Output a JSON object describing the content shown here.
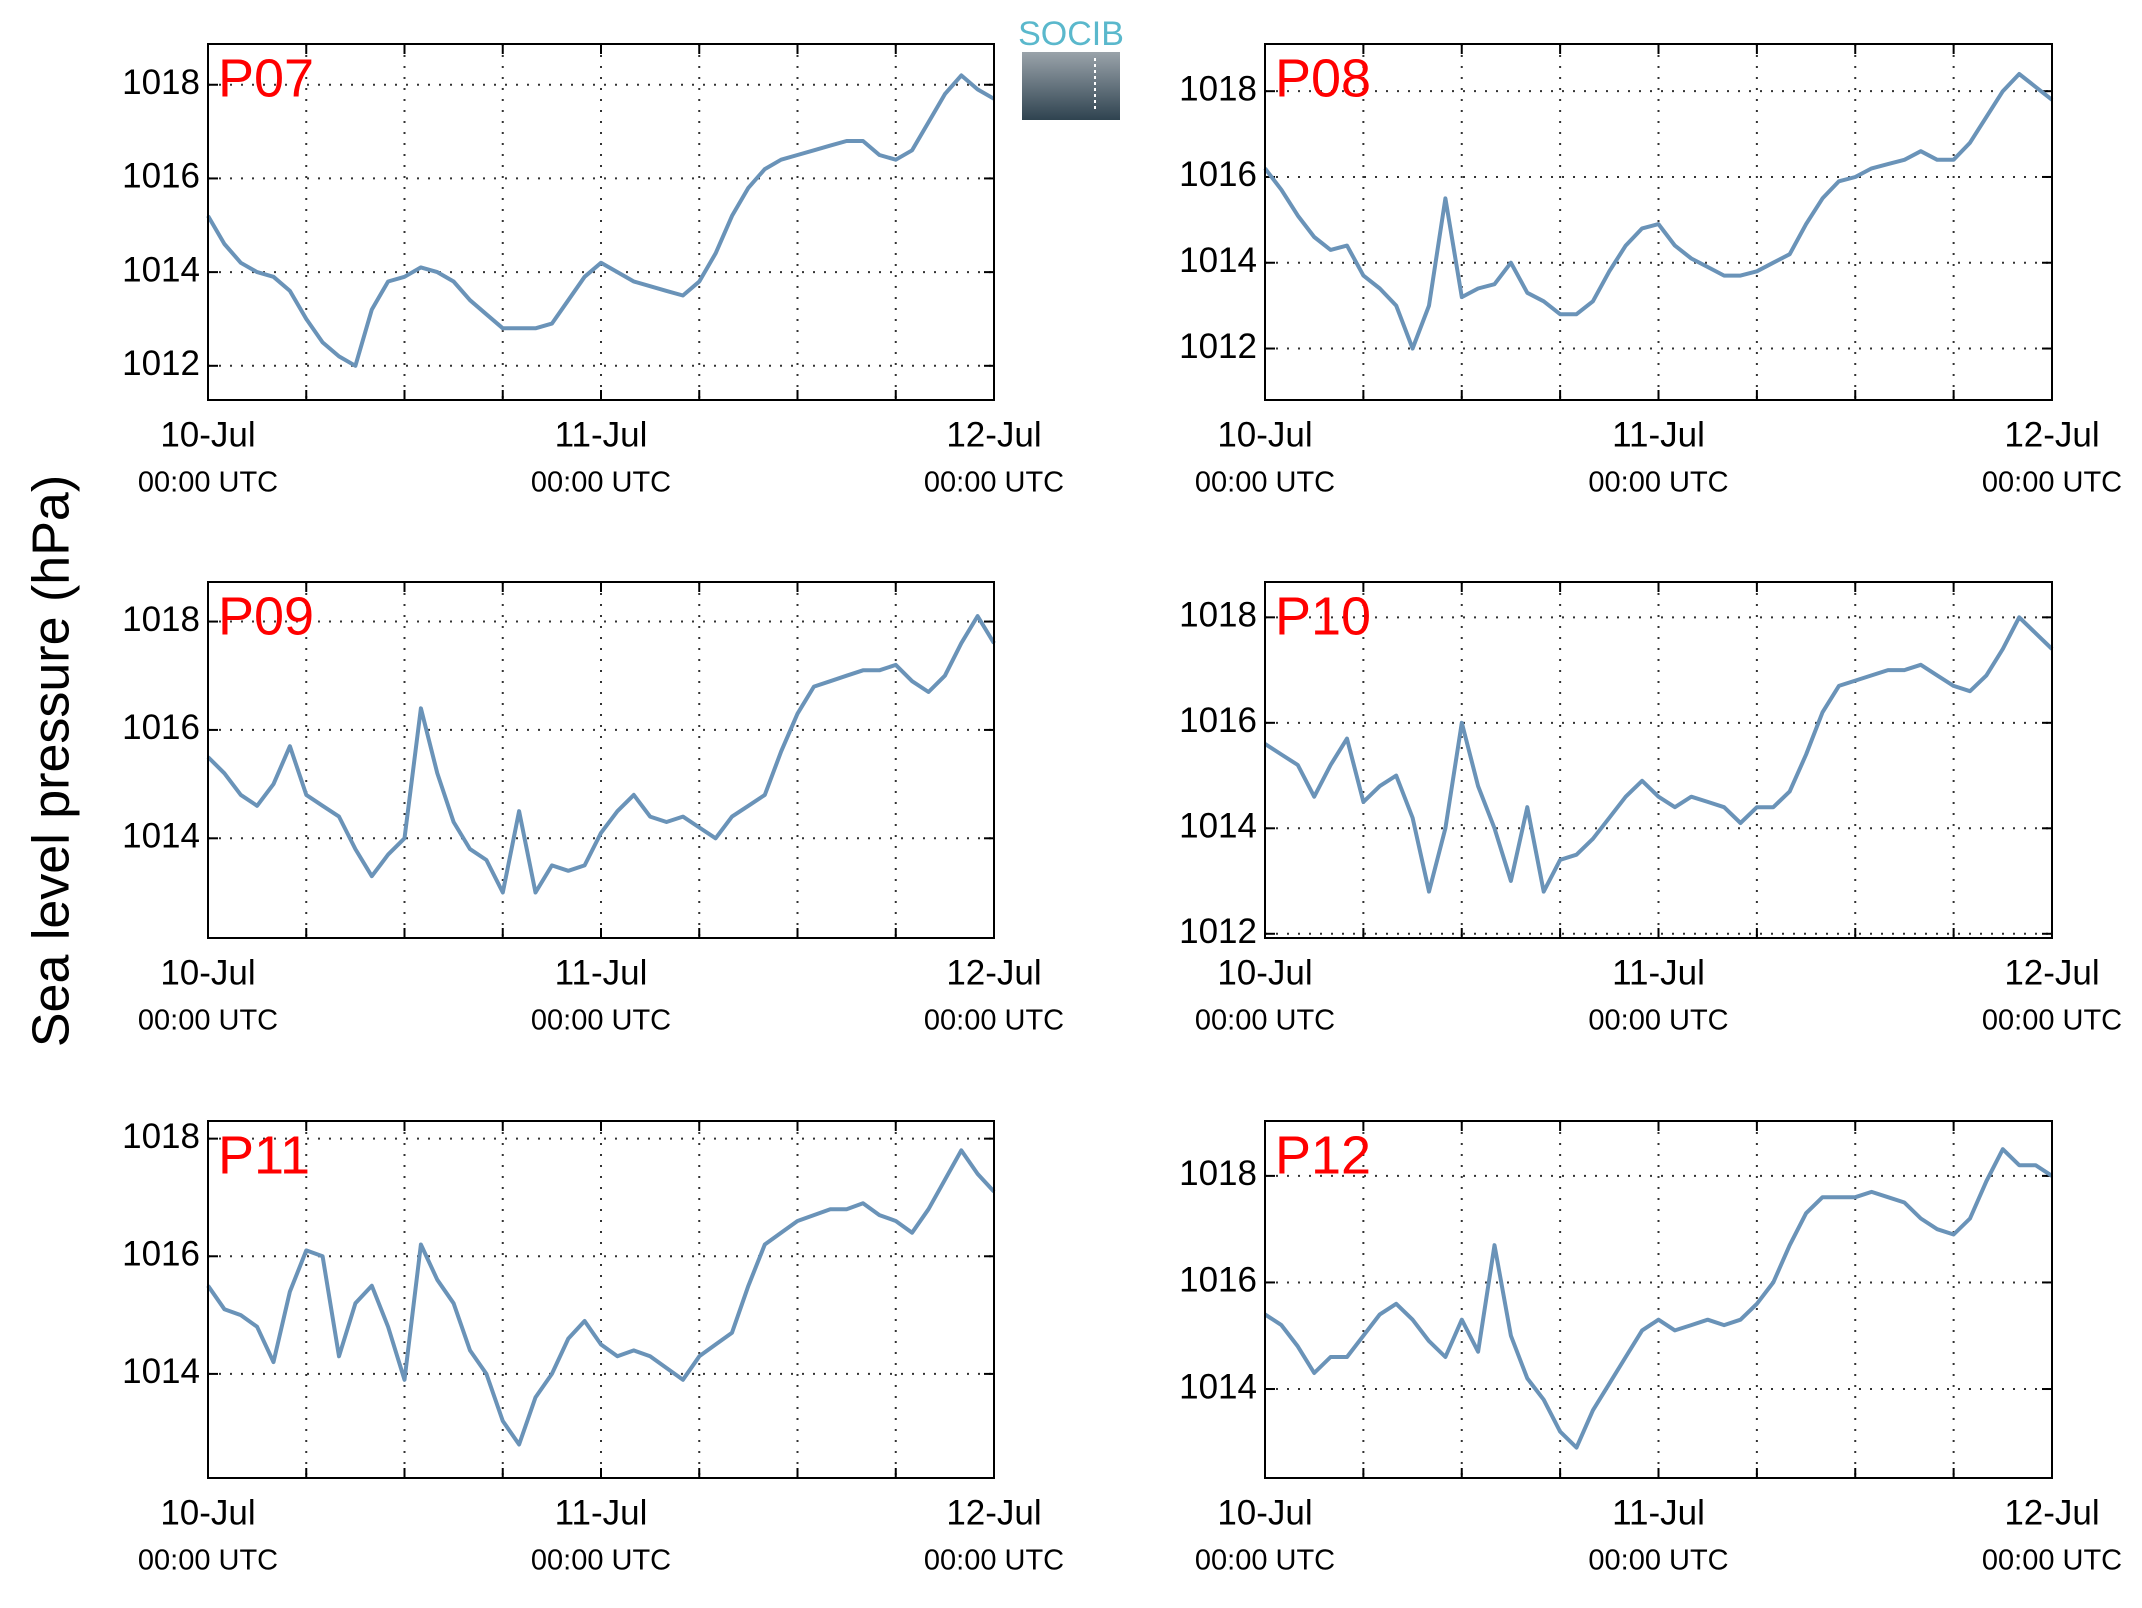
{
  "ylabel": "Sea level pressure (hPa)",
  "logo": "SOCIB",
  "chart_data": [
    {
      "type": "line",
      "title": "P07",
      "color": "#6a93b8",
      "x": [
        0,
        1,
        2,
        3,
        4,
        5,
        6,
        7,
        8,
        9,
        10,
        11,
        12,
        13,
        14,
        15,
        16,
        17,
        18,
        19,
        20,
        21,
        22,
        23,
        24,
        25,
        26,
        27,
        28,
        29,
        30,
        31,
        32,
        33,
        34,
        35,
        36,
        37,
        38,
        39,
        40,
        41,
        42,
        43,
        44,
        45,
        46,
        47,
        48
      ],
      "values": [
        1015.2,
        1014.6,
        1014.2,
        1014.0,
        1013.9,
        1013.6,
        1013.0,
        1012.5,
        1012.2,
        1012.0,
        1013.2,
        1013.8,
        1013.9,
        1014.1,
        1014.0,
        1013.8,
        1013.4,
        1013.1,
        1012.8,
        1012.8,
        1012.8,
        1012.9,
        1013.4,
        1013.9,
        1014.2,
        1014.0,
        1013.8,
        1013.7,
        1013.6,
        1013.5,
        1013.8,
        1014.4,
        1015.2,
        1015.8,
        1016.2,
        1016.4,
        1016.5,
        1016.6,
        1016.7,
        1016.8,
        1016.8,
        1016.5,
        1016.4,
        1016.6,
        1017.2,
        1017.8,
        1018.2,
        1017.9,
        1017.7
      ],
      "xlim": [
        0,
        48
      ],
      "xticks": [
        {
          "value": 0,
          "label": [
            "10-Jul",
            "00:00 UTC"
          ]
        },
        {
          "value": 24,
          "label": [
            "11-Jul",
            "00:00 UTC"
          ]
        },
        {
          "value": 48,
          "label": [
            "12-Jul",
            "00:00 UTC"
          ]
        }
      ],
      "xminor": [
        6,
        12,
        18,
        30,
        36,
        42
      ],
      "ylim": [
        1011.27,
        1018.87
      ],
      "yticks": [
        1012,
        1014,
        1016,
        1018
      ],
      "grid": true
    },
    {
      "type": "line",
      "title": "P08",
      "color": "#6a93b8",
      "x": [
        0,
        1,
        2,
        3,
        4,
        5,
        6,
        7,
        8,
        9,
        10,
        11,
        12,
        13,
        14,
        15,
        16,
        17,
        18,
        19,
        20,
        21,
        22,
        23,
        24,
        25,
        26,
        27,
        28,
        29,
        30,
        31,
        32,
        33,
        34,
        35,
        36,
        37,
        38,
        39,
        40,
        41,
        42,
        43,
        44,
        45,
        46,
        47,
        48
      ],
      "values": [
        1016.2,
        1015.7,
        1015.1,
        1014.6,
        1014.3,
        1014.4,
        1013.7,
        1013.4,
        1013.0,
        1012.0,
        1013.0,
        1015.5,
        1013.2,
        1013.4,
        1013.5,
        1014.0,
        1013.3,
        1013.1,
        1012.8,
        1012.8,
        1013.1,
        1013.8,
        1014.4,
        1014.8,
        1014.9,
        1014.4,
        1014.1,
        1013.9,
        1013.7,
        1013.7,
        1013.8,
        1014.0,
        1014.2,
        1014.9,
        1015.5,
        1015.9,
        1016.0,
        1016.2,
        1016.3,
        1016.4,
        1016.6,
        1016.4,
        1016.4,
        1016.8,
        1017.4,
        1018.0,
        1018.4,
        1018.1,
        1017.8
      ],
      "xlim": [
        0,
        48
      ],
      "xticks": [
        {
          "value": 0,
          "label": [
            "10-Jul",
            "00:00 UTC"
          ]
        },
        {
          "value": 24,
          "label": [
            "11-Jul",
            "00:00 UTC"
          ]
        },
        {
          "value": 48,
          "label": [
            "12-Jul",
            "00:00 UTC"
          ]
        }
      ],
      "xminor": [
        6,
        12,
        18,
        30,
        36,
        42
      ],
      "ylim": [
        1010.8,
        1019.1
      ],
      "yticks": [
        1012,
        1014,
        1016,
        1018
      ],
      "grid": true
    },
    {
      "type": "line",
      "title": "P09",
      "color": "#6a93b8",
      "x": [
        0,
        1,
        2,
        3,
        4,
        5,
        6,
        7,
        8,
        9,
        10,
        11,
        12,
        13,
        14,
        15,
        16,
        17,
        18,
        19,
        20,
        21,
        22,
        23,
        24,
        25,
        26,
        27,
        28,
        29,
        30,
        31,
        32,
        33,
        34,
        35,
        36,
        37,
        38,
        39,
        40,
        41,
        42,
        43,
        44,
        45,
        46,
        47,
        48
      ],
      "values": [
        1015.5,
        1015.2,
        1014.8,
        1014.6,
        1015.0,
        1015.7,
        1014.8,
        1014.6,
        1014.4,
        1013.8,
        1013.3,
        1013.7,
        1014.0,
        1016.4,
        1015.2,
        1014.3,
        1013.8,
        1013.6,
        1013.0,
        1014.5,
        1013.0,
        1013.5,
        1013.4,
        1013.5,
        1014.1,
        1014.5,
        1014.8,
        1014.4,
        1014.3,
        1014.4,
        1014.2,
        1014.0,
        1014.4,
        1014.6,
        1014.8,
        1015.6,
        1016.3,
        1016.8,
        1016.9,
        1017.0,
        1017.1,
        1017.1,
        1017.2,
        1016.9,
        1016.7,
        1017.0,
        1017.6,
        1018.1,
        1017.6
      ],
      "xlim": [
        0,
        48
      ],
      "xticks": [
        {
          "value": 0,
          "label": [
            "10-Jul",
            "00:00 UTC"
          ]
        },
        {
          "value": 24,
          "label": [
            "11-Jul",
            "00:00 UTC"
          ]
        },
        {
          "value": 48,
          "label": [
            "12-Jul",
            "00:00 UTC"
          ]
        }
      ],
      "xminor": [
        6,
        12,
        18,
        30,
        36,
        42
      ],
      "ylim": [
        1012.16,
        1018.73
      ],
      "yticks": [
        1014,
        1016,
        1018
      ],
      "grid": true
    },
    {
      "type": "line",
      "title": "P10",
      "color": "#6a93b8",
      "x": [
        0,
        1,
        2,
        3,
        4,
        5,
        6,
        7,
        8,
        9,
        10,
        11,
        12,
        13,
        14,
        15,
        16,
        17,
        18,
        19,
        20,
        21,
        22,
        23,
        24,
        25,
        26,
        27,
        28,
        29,
        30,
        31,
        32,
        33,
        34,
        35,
        36,
        37,
        38,
        39,
        40,
        41,
        42,
        43,
        44,
        45,
        46,
        47,
        48
      ],
      "values": [
        1015.6,
        1015.4,
        1015.2,
        1014.6,
        1015.2,
        1015.7,
        1014.5,
        1014.8,
        1015.0,
        1014.2,
        1012.8,
        1014.0,
        1016.0,
        1014.8,
        1014.0,
        1013.0,
        1014.4,
        1012.8,
        1013.4,
        1013.5,
        1013.8,
        1014.2,
        1014.6,
        1014.9,
        1014.6,
        1014.4,
        1014.6,
        1014.5,
        1014.4,
        1014.1,
        1014.4,
        1014.4,
        1014.7,
        1015.4,
        1016.2,
        1016.7,
        1016.8,
        1016.9,
        1017.0,
        1017.0,
        1017.1,
        1016.9,
        1016.7,
        1016.6,
        1016.9,
        1017.4,
        1018.0,
        1017.7,
        1017.4
      ],
      "xlim": [
        0,
        48
      ],
      "xticks": [
        {
          "value": 0,
          "label": [
            "10-Jul",
            "00:00 UTC"
          ]
        },
        {
          "value": 24,
          "label": [
            "11-Jul",
            "00:00 UTC"
          ]
        },
        {
          "value": 48,
          "label": [
            "12-Jul",
            "00:00 UTC"
          ]
        }
      ],
      "xminor": [
        6,
        12,
        18,
        30,
        36,
        42
      ],
      "ylim": [
        1011.92,
        1018.67
      ],
      "yticks": [
        1012,
        1014,
        1016,
        1018
      ],
      "grid": true
    },
    {
      "type": "line",
      "title": "P11",
      "color": "#6a93b8",
      "x": [
        0,
        1,
        2,
        3,
        4,
        5,
        6,
        7,
        8,
        9,
        10,
        11,
        12,
        13,
        14,
        15,
        16,
        17,
        18,
        19,
        20,
        21,
        22,
        23,
        24,
        25,
        26,
        27,
        28,
        29,
        30,
        31,
        32,
        33,
        34,
        35,
        36,
        37,
        38,
        39,
        40,
        41,
        42,
        43,
        44,
        45,
        46,
        47,
        48
      ],
      "values": [
        1015.5,
        1015.1,
        1015.0,
        1014.8,
        1014.2,
        1015.4,
        1016.1,
        1016.0,
        1014.3,
        1015.2,
        1015.5,
        1014.8,
        1013.9,
        1016.2,
        1015.6,
        1015.2,
        1014.4,
        1014.0,
        1013.2,
        1012.8,
        1013.6,
        1014.0,
        1014.6,
        1014.9,
        1014.5,
        1014.3,
        1014.4,
        1014.3,
        1014.1,
        1013.9,
        1014.3,
        1014.5,
        1014.7,
        1015.5,
        1016.2,
        1016.4,
        1016.6,
        1016.7,
        1016.8,
        1016.8,
        1016.9,
        1016.7,
        1016.6,
        1016.4,
        1016.8,
        1017.3,
        1017.8,
        1017.4,
        1017.1
      ],
      "xlim": [
        0,
        48
      ],
      "xticks": [
        {
          "value": 0,
          "label": [
            "10-Jul",
            "00:00 UTC"
          ]
        },
        {
          "value": 24,
          "label": [
            "11-Jul",
            "00:00 UTC"
          ]
        },
        {
          "value": 48,
          "label": [
            "12-Jul",
            "00:00 UTC"
          ]
        }
      ],
      "xminor": [
        6,
        12,
        18,
        30,
        36,
        42
      ],
      "ylim": [
        1012.23,
        1018.3
      ],
      "yticks": [
        1014,
        1016,
        1018
      ],
      "grid": true
    },
    {
      "type": "line",
      "title": "P12",
      "color": "#6a93b8",
      "x": [
        0,
        1,
        2,
        3,
        4,
        5,
        6,
        7,
        8,
        9,
        10,
        11,
        12,
        13,
        14,
        15,
        16,
        17,
        18,
        19,
        20,
        21,
        22,
        23,
        24,
        25,
        26,
        27,
        28,
        29,
        30,
        31,
        32,
        33,
        34,
        35,
        36,
        37,
        38,
        39,
        40,
        41,
        42,
        43,
        44,
        45,
        46,
        47,
        48
      ],
      "values": [
        1015.4,
        1015.2,
        1014.8,
        1014.3,
        1014.6,
        1014.6,
        1015.0,
        1015.4,
        1015.6,
        1015.3,
        1014.9,
        1014.6,
        1015.3,
        1014.7,
        1016.7,
        1015.0,
        1014.2,
        1013.8,
        1013.2,
        1012.9,
        1013.6,
        1014.1,
        1014.6,
        1015.1,
        1015.3,
        1015.1,
        1015.2,
        1015.3,
        1015.2,
        1015.3,
        1015.6,
        1016.0,
        1016.7,
        1017.3,
        1017.6,
        1017.6,
        1017.6,
        1017.7,
        1017.6,
        1017.5,
        1017.2,
        1017.0,
        1016.9,
        1017.2,
        1017.9,
        1018.5,
        1018.2,
        1018.2,
        1018.0
      ],
      "xlim": [
        0,
        48
      ],
      "xticks": [
        {
          "value": 0,
          "label": [
            "10-Jul",
            "00:00 UTC"
          ]
        },
        {
          "value": 24,
          "label": [
            "11-Jul",
            "00:00 UTC"
          ]
        },
        {
          "value": 48,
          "label": [
            "12-Jul",
            "00:00 UTC"
          ]
        }
      ],
      "xminor": [
        6,
        12,
        18,
        30,
        36,
        42
      ],
      "ylim": [
        1012.33,
        1019.03
      ],
      "yticks": [
        1014,
        1016,
        1018
      ],
      "grid": true
    }
  ]
}
